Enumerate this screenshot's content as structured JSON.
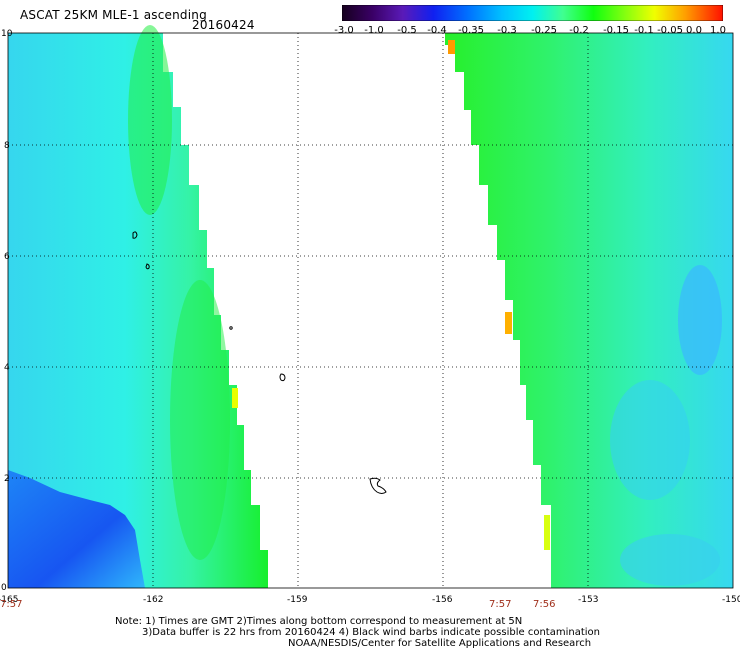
{
  "header": {
    "title": "ASCAT 25KM MLE-1 ascending",
    "date": "20160424"
  },
  "colorbar": {
    "labels": [
      "-3.0",
      "-1.0",
      "-0.5",
      "-0.4",
      "-0.35",
      "-0.3",
      "-0.25",
      "-0.2",
      "-0.15",
      "-0.1",
      "-0.05",
      "0.0",
      "1.0"
    ],
    "colors": [
      "#1a0030",
      "#4a0070",
      "#5a20c8",
      "#0a2cff",
      "#0a7cff",
      "#00b4ff",
      "#00e8ff",
      "#33ff99",
      "#22ff22",
      "#8cff1a",
      "#e8ff00",
      "#ffb000",
      "#ff5000",
      "#ff0000"
    ]
  },
  "map": {
    "x_ticks": [
      "-165",
      "-162",
      "-159",
      "-156",
      "-153",
      "-150"
    ],
    "y_ticks": [
      "0",
      "2",
      "4",
      "6",
      "8",
      "10"
    ],
    "time_labels": [
      "7:57",
      "7:57",
      "7:56"
    ]
  },
  "footer": {
    "line1": "Note: 1) Times are GMT 2)Times along bottom correspond to measurement at 5N",
    "line2": "3)Data buffer is 22 hrs from 20160424 4) Black wind barbs indicate possible contamination",
    "line3": "NOAA/NESDIS/Center for Satellite Applications and Research"
  }
}
